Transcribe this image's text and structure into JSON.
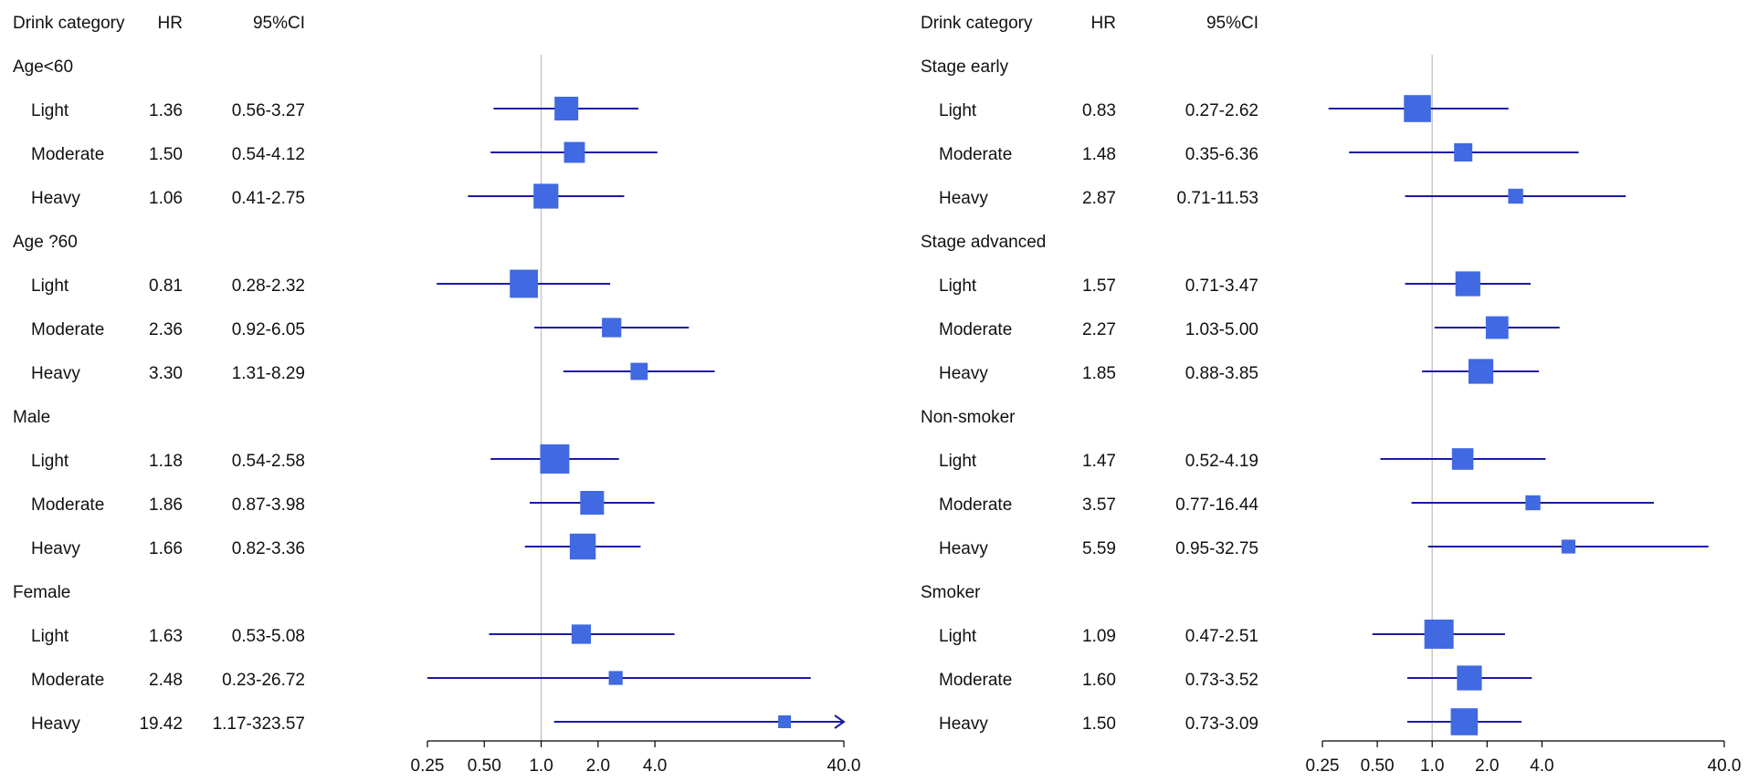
{
  "colors": {
    "box": "#4169E1",
    "ci_line": "#1a1aa6",
    "ref_line": "#c8c8c8",
    "axis": "#000000",
    "text": "#111111"
  },
  "chart_data": [
    {
      "type": "forest",
      "headers": {
        "category": "Drink category",
        "hr": "HR",
        "ci": "95%CI"
      },
      "x_scale": "log",
      "xlim": [
        0.25,
        40
      ],
      "ref_value": 1,
      "x_ticks": [
        0.25,
        0.5,
        1,
        2,
        4,
        40
      ],
      "x_tick_labels": [
        "0.25",
        "0.50",
        "1.0",
        "2.0",
        "4.0",
        "40.0"
      ],
      "groups": [
        {
          "name": "Age<60",
          "rows": [
            {
              "label": "Light",
              "hr": 1.36,
              "hr_text": "1.36",
              "lo": 0.56,
              "hi": 3.27,
              "ci_text": "0.56-3.27",
              "weight": 0.75
            },
            {
              "label": "Moderate",
              "hr": 1.5,
              "hr_text": "1.50",
              "lo": 0.54,
              "hi": 4.12,
              "ci_text": "0.54-4.12",
              "weight": 0.62
            },
            {
              "label": "Heavy",
              "hr": 1.06,
              "hr_text": "1.06",
              "lo": 0.41,
              "hi": 2.75,
              "ci_text": "0.41-2.75",
              "weight": 0.8
            }
          ]
        },
        {
          "name": "Age ?60",
          "rows": [
            {
              "label": "Light",
              "hr": 0.81,
              "hr_text": "0.81",
              "lo": 0.28,
              "hi": 2.32,
              "ci_text": "0.28-2.32",
              "weight": 0.95
            },
            {
              "label": "Moderate",
              "hr": 2.36,
              "hr_text": "2.36",
              "lo": 0.92,
              "hi": 6.05,
              "ci_text": "0.92-6.05",
              "weight": 0.55
            },
            {
              "label": "Heavy",
              "hr": 3.3,
              "hr_text": "3.30",
              "lo": 1.31,
              "hi": 8.29,
              "ci_text": "1.31-8.29",
              "weight": 0.45
            }
          ]
        },
        {
          "name": "Male",
          "rows": [
            {
              "label": "Light",
              "hr": 1.18,
              "hr_text": "1.18",
              "lo": 0.54,
              "hi": 2.58,
              "ci_text": "0.54-2.58",
              "weight": 1.0
            },
            {
              "label": "Moderate",
              "hr": 1.86,
              "hr_text": "1.86",
              "lo": 0.87,
              "hi": 3.98,
              "ci_text": "0.87-3.98",
              "weight": 0.75
            },
            {
              "label": "Heavy",
              "hr": 1.66,
              "hr_text": "1.66",
              "lo": 0.82,
              "hi": 3.36,
              "ci_text": "0.82-3.36",
              "weight": 0.85
            }
          ]
        },
        {
          "name": "Female",
          "rows": [
            {
              "label": "Light",
              "hr": 1.63,
              "hr_text": "1.63",
              "lo": 0.53,
              "hi": 5.08,
              "ci_text": "0.53-5.08",
              "weight": 0.55
            },
            {
              "label": "Moderate",
              "hr": 2.48,
              "hr_text": "2.48",
              "lo": 0.23,
              "hi": 26.72,
              "ci_text": "0.23-26.72",
              "weight": 0.3
            },
            {
              "label": "Heavy",
              "hr": 19.42,
              "hr_text": "19.42",
              "lo": 1.17,
              "hi": 323.57,
              "ci_text": "1.17-323.57",
              "weight": 0.25
            }
          ]
        }
      ]
    },
    {
      "type": "forest",
      "headers": {
        "category": "Drink category",
        "hr": "HR",
        "ci": "95%CI"
      },
      "x_scale": "log",
      "xlim": [
        0.25,
        40
      ],
      "ref_value": 1,
      "x_ticks": [
        0.25,
        0.5,
        1,
        2,
        4,
        40
      ],
      "x_tick_labels": [
        "0.25",
        "0.50",
        "1.0",
        "2.0",
        "4.0",
        "40.0"
      ],
      "groups": [
        {
          "name": "Stage early",
          "rows": [
            {
              "label": "Light",
              "hr": 0.83,
              "hr_text": "0.83",
              "lo": 0.27,
              "hi": 2.62,
              "ci_text": "0.27-2.62",
              "weight": 0.9
            },
            {
              "label": "Moderate",
              "hr": 1.48,
              "hr_text": "1.48",
              "lo": 0.35,
              "hi": 6.36,
              "ci_text": "0.35-6.36",
              "weight": 0.5
            },
            {
              "label": "Heavy",
              "hr": 2.87,
              "hr_text": "2.87",
              "lo": 0.71,
              "hi": 11.53,
              "ci_text": "0.71-11.53",
              "weight": 0.35
            }
          ]
        },
        {
          "name": "Stage advanced",
          "rows": [
            {
              "label": "Light",
              "hr": 1.57,
              "hr_text": "1.57",
              "lo": 0.71,
              "hi": 3.47,
              "ci_text": "0.71-3.47",
              "weight": 0.8
            },
            {
              "label": "Moderate",
              "hr": 2.27,
              "hr_text": "2.27",
              "lo": 1.03,
              "hi": 5.0,
              "ci_text": "1.03-5.00",
              "weight": 0.7
            },
            {
              "label": "Heavy",
              "hr": 1.85,
              "hr_text": "1.85",
              "lo": 0.88,
              "hi": 3.85,
              "ci_text": "0.88-3.85",
              "weight": 0.8
            }
          ]
        },
        {
          "name": "Non-smoker",
          "rows": [
            {
              "label": "Light",
              "hr": 1.47,
              "hr_text": "1.47",
              "lo": 0.52,
              "hi": 4.19,
              "ci_text": "0.52-4.19",
              "weight": 0.65
            },
            {
              "label": "Moderate",
              "hr": 3.57,
              "hr_text": "3.57",
              "lo": 0.77,
              "hi": 16.44,
              "ci_text": "0.77-16.44",
              "weight": 0.35
            },
            {
              "label": "Heavy",
              "hr": 5.59,
              "hr_text": "5.59",
              "lo": 0.95,
              "hi": 32.75,
              "ci_text": "0.95-32.75",
              "weight": 0.3
            }
          ]
        },
        {
          "name": "Smoker",
          "rows": [
            {
              "label": "Light",
              "hr": 1.09,
              "hr_text": "1.09",
              "lo": 0.47,
              "hi": 2.51,
              "ci_text": "0.47-2.51",
              "weight": 1.0
            },
            {
              "label": "Moderate",
              "hr": 1.6,
              "hr_text": "1.60",
              "lo": 0.73,
              "hi": 3.52,
              "ci_text": "0.73-3.52",
              "weight": 0.8
            },
            {
              "label": "Heavy",
              "hr": 1.5,
              "hr_text": "1.50",
              "lo": 0.73,
              "hi": 3.09,
              "ci_text": "0.73-3.09",
              "weight": 0.9
            }
          ]
        }
      ]
    }
  ]
}
